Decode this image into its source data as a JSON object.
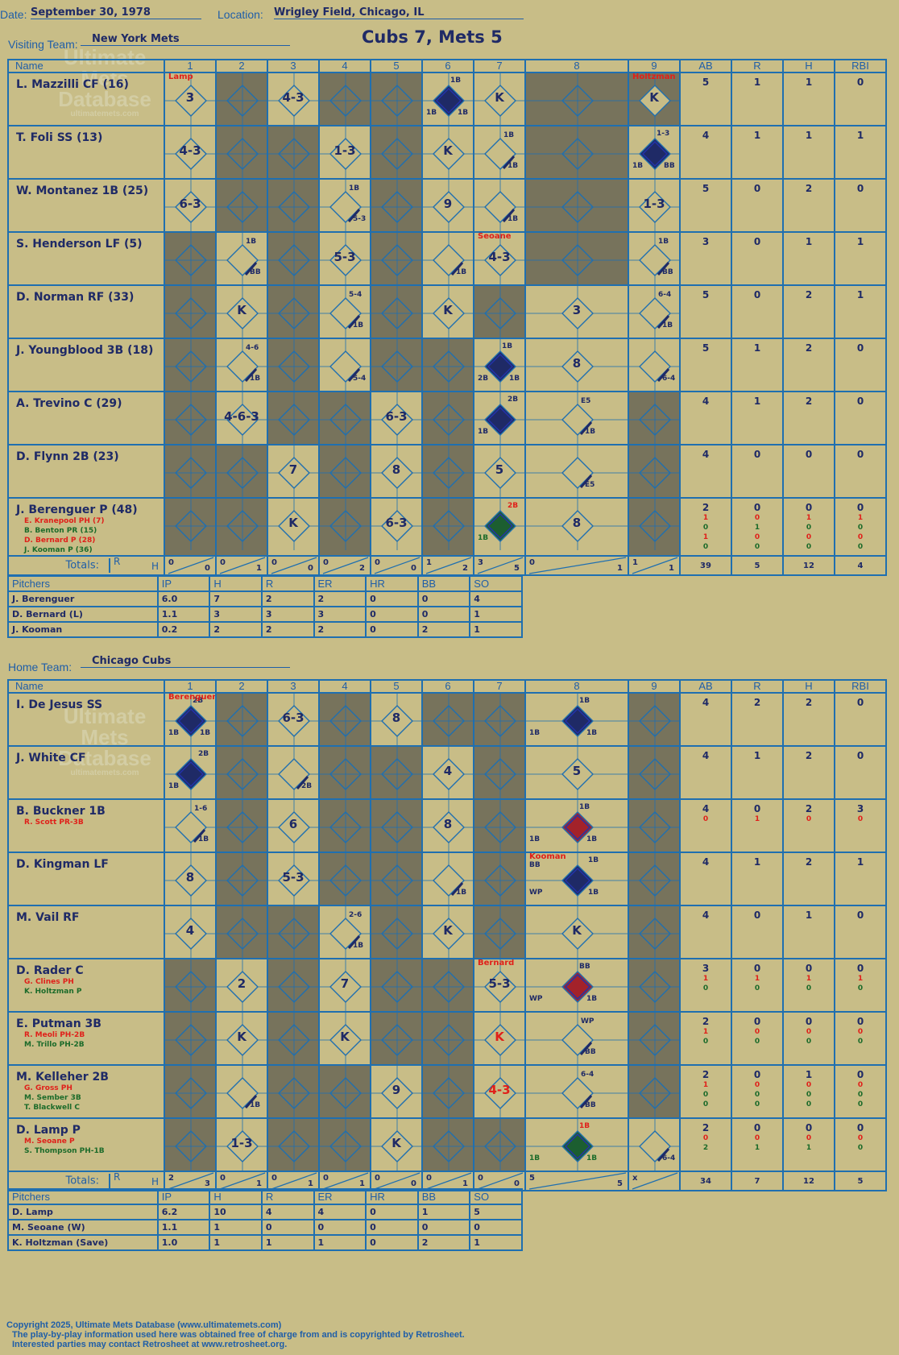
{
  "header": {
    "date_label": "Date:",
    "date": "September 30, 1978",
    "location_label": "Location:",
    "location": "Wrigley Field, Chicago, IL",
    "visiting_label": "Visiting Team:",
    "visiting_team": "New York Mets",
    "title": "Cubs 7, Mets 5",
    "home_label": "Home Team:",
    "home_team": "Chicago Cubs"
  },
  "watermark": {
    "line1": "Ultimate",
    "line2": "Mets",
    "line3": "Database",
    "url": "ultimatemets.com"
  },
  "columns": {
    "name": "Name",
    "innings": [
      "1",
      "2",
      "3",
      "4",
      "5",
      "6",
      "7",
      "8",
      "9"
    ],
    "stats": [
      "AB",
      "R",
      "H",
      "RBI"
    ]
  },
  "totals_label": "Totals:",
  "totals_r": "R",
  "totals_h": "H",
  "pitchers_header": [
    "Pitchers",
    "IP",
    "H",
    "R",
    "ER",
    "HR",
    "BB",
    "SO"
  ],
  "colors": {
    "background": "#c8bd87",
    "grid": "#1f6fb0",
    "ink": "#1f2a66",
    "red": "#e0201a",
    "green": "#1c6b2a",
    "gray_cell": "#77735c",
    "run_blue": "#1f2a66",
    "run_red": "#a3222a",
    "run_green": "#1c5e30"
  },
  "visitors": {
    "batters": [
      {
        "name": "L. Mazzilli CF (16)",
        "subs": [],
        "ab": "5",
        "r": "1",
        "h": "1",
        "rbi": "0"
      },
      {
        "name": "T. Foli SS (13)",
        "subs": [],
        "ab": "4",
        "r": "1",
        "h": "1",
        "rbi": "1"
      },
      {
        "name": "W. Montanez 1B (25)",
        "subs": [],
        "ab": "5",
        "r": "0",
        "h": "2",
        "rbi": "0"
      },
      {
        "name": "S. Henderson LF (5)",
        "subs": [],
        "ab": "3",
        "r": "0",
        "h": "1",
        "rbi": "1"
      },
      {
        "name": "D. Norman RF (33)",
        "subs": [],
        "ab": "5",
        "r": "0",
        "h": "2",
        "rbi": "1"
      },
      {
        "name": "J. Youngblood 3B (18)",
        "subs": [],
        "ab": "5",
        "r": "1",
        "h": "2",
        "rbi": "0"
      },
      {
        "name": "A. Trevino C (29)",
        "subs": [],
        "ab": "4",
        "r": "1",
        "h": "2",
        "rbi": "0"
      },
      {
        "name": "D. Flynn 2B (23)",
        "subs": [],
        "ab": "4",
        "r": "0",
        "h": "0",
        "rbi": "0"
      },
      {
        "name": "J. Berenguer P (48)",
        "subs": [
          {
            "name": "E. Kranepool PH (7)",
            "color": "#e0201a",
            "ab": "1",
            "r": "0",
            "h": "1",
            "rbi": "1"
          },
          {
            "name": "B. Benton PR (15)",
            "color": "#1c6b2a",
            "ab": "0",
            "r": "1",
            "h": "0",
            "rbi": "0"
          },
          {
            "name": "D. Bernard P (28)",
            "color": "#e0201a",
            "ab": "1",
            "r": "0",
            "h": "0",
            "rbi": "0"
          },
          {
            "name": "J. Kooman P (36)",
            "color": "#1c6b2a",
            "ab": "0",
            "r": "0",
            "h": "0",
            "rbi": "0"
          }
        ],
        "ab": "2",
        "r": "0",
        "h": "0",
        "rbi": "0"
      }
    ],
    "cells": [
      [
        "3|Lamp",
        "G",
        "4-3",
        "G",
        "G",
        "*blue|1B|1B|1B",
        "K",
        "G",
        "G|Holtzman*K"
      ],
      [
        "4-3",
        "G",
        "G",
        "1-3",
        "G",
        "K",
        "/1B|1B",
        "G",
        "*blue|1-3|1B|BB"
      ],
      [
        "6-3",
        "G",
        "G",
        "/1B|5-3|1B",
        "G",
        "9",
        "/1B",
        "G",
        "1-3"
      ],
      [
        "G",
        "/1B|BB",
        "G",
        "5-3",
        "G",
        "/1B",
        "4-3|Seoane",
        "G",
        "/1B|BB"
      ],
      [
        "G",
        "K",
        "G",
        "/5-4|1B",
        "G",
        "K",
        "G",
        "3",
        "/6-4|1B"
      ],
      [
        "G",
        "/4-6|1B",
        "G",
        "/5-4",
        "G",
        "G",
        "*blue|1B|2B|1B",
        "8",
        "/6-4"
      ],
      [
        "G",
        "4-6-3",
        "G",
        "G",
        "6-3",
        "G",
        "*blue|2B|1B",
        "/E5|1B",
        "G"
      ],
      [
        "G",
        "G",
        "7",
        "G",
        "8",
        "G",
        "5",
        "/E5",
        "G"
      ],
      [
        "G",
        "G",
        "K",
        "G",
        "6-3",
        "G",
        "*green|2B|1B",
        "8",
        "G"
      ]
    ],
    "totals": [
      [
        "0",
        "0"
      ],
      [
        "0",
        "1"
      ],
      [
        "0",
        "0"
      ],
      [
        "0",
        "2"
      ],
      [
        "0",
        "0"
      ],
      [
        "1",
        "2"
      ],
      [
        "3",
        "5"
      ],
      [
        "0",
        "1"
      ],
      [
        "1",
        "1"
      ]
    ],
    "totals_stats": {
      "ab": "39",
      "r": "5",
      "h": "12",
      "rbi": "4"
    },
    "pitchers": [
      [
        "J. Berenguer",
        "6.0",
        "7",
        "2",
        "2",
        "0",
        "0",
        "4"
      ],
      [
        "D. Bernard (L)",
        "1.1",
        "3",
        "3",
        "3",
        "0",
        "0",
        "1"
      ],
      [
        "J. Kooman",
        "0.2",
        "2",
        "2",
        "2",
        "0",
        "2",
        "1"
      ]
    ]
  },
  "home": {
    "batters": [
      {
        "name": "I. De Jesus SS",
        "subs": [],
        "ab": "4",
        "r": "2",
        "h": "2",
        "rbi": "0"
      },
      {
        "name": "J. White CF",
        "subs": [],
        "ab": "4",
        "r": "1",
        "h": "2",
        "rbi": "0"
      },
      {
        "name": "B. Buckner 1B",
        "subs": [
          {
            "name": "R. Scott PR-3B",
            "color": "#e0201a",
            "ab": "0",
            "r": "1",
            "h": "0",
            "rbi": "0"
          }
        ],
        "ab": "4",
        "r": "0",
        "h": "2",
        "rbi": "3"
      },
      {
        "name": "D. Kingman LF",
        "subs": [],
        "ab": "4",
        "r": "1",
        "h": "2",
        "rbi": "1"
      },
      {
        "name": "M. Vail RF",
        "subs": [],
        "ab": "4",
        "r": "0",
        "h": "1",
        "rbi": "0"
      },
      {
        "name": "D. Rader C",
        "subs": [
          {
            "name": "G. Clines PH",
            "color": "#e0201a",
            "ab": "1",
            "r": "1",
            "h": "1",
            "rbi": "1"
          },
          {
            "name": "K. Holtzman P",
            "color": "#1c6b2a",
            "ab": "0",
            "r": "0",
            "h": "0",
            "rbi": "0"
          }
        ],
        "ab": "3",
        "r": "0",
        "h": "0",
        "rbi": "0"
      },
      {
        "name": "E. Putman 3B",
        "subs": [
          {
            "name": "R. Meoli PH-2B",
            "color": "#e0201a",
            "ab": "1",
            "r": "0",
            "h": "0",
            "rbi": "0"
          },
          {
            "name": "M. Trillo PH-2B",
            "color": "#1c6b2a",
            "ab": "0",
            "r": "0",
            "h": "0",
            "rbi": "0"
          }
        ],
        "ab": "2",
        "r": "0",
        "h": "0",
        "rbi": "0"
      },
      {
        "name": "M. Kelleher 2B",
        "subs": [
          {
            "name": "G. Gross PH",
            "color": "#e0201a",
            "ab": "1",
            "r": "0",
            "h": "0",
            "rbi": "0"
          },
          {
            "name": "M. Sember 3B",
            "color": "#1c6b2a",
            "ab": "0",
            "r": "0",
            "h": "0",
            "rbi": "0"
          },
          {
            "name": "T. Blackwell C",
            "color": "#1c6b2a",
            "ab": "0",
            "r": "0",
            "h": "0",
            "rbi": "0"
          }
        ],
        "ab": "2",
        "r": "0",
        "h": "1",
        "rbi": "0"
      },
      {
        "name": "D. Lamp P",
        "subs": [
          {
            "name": "M. Seoane P",
            "color": "#e0201a",
            "ab": "0",
            "r": "0",
            "h": "0",
            "rbi": "0"
          },
          {
            "name": "S. Thompson PH-1B",
            "color": "#1c6b2a",
            "ab": "2",
            "r": "1",
            "h": "1",
            "rbi": "0"
          }
        ],
        "ab": "2",
        "r": "0",
        "h": "0",
        "rbi": "0"
      }
    ],
    "cells": [
      [
        "*blue|2B|1B|1B|Berenguer",
        "G",
        "6-3",
        "G",
        "8",
        "G",
        "G",
        "*blue|1B|1B|1B",
        "G"
      ],
      [
        "*blue|2B|1B",
        "G",
        "/2B",
        "G",
        "G",
        "4",
        "G",
        "5",
        "G"
      ],
      [
        "/1-6|1B",
        "G",
        "6",
        "G",
        "G",
        "8",
        "G",
        "*red|1B|1B|1B",
        "G"
      ],
      [
        "8",
        "G",
        "5-3",
        "G",
        "G",
        "/1B",
        "G",
        "*blue|BB|1B|WP|1B|Kooman",
        "G"
      ],
      [
        "4",
        "G",
        "G",
        "/2-6|1B",
        "G",
        "K",
        "G",
        "K",
        "G"
      ],
      [
        "G",
        "2",
        "G",
        "7",
        "G",
        "G",
        "5-3|Bernard",
        "*red|BB|WP|1B",
        "G"
      ],
      [
        "G",
        "K",
        "G",
        "K",
        "G",
        "G",
        "K",
        "/WP|BB",
        "G"
      ],
      [
        "G",
        "/1B",
        "G",
        "G",
        "9",
        "G",
        "4-3",
        "/6-4|BB",
        "G"
      ],
      [
        "G",
        "1-3",
        "G",
        "G",
        "K",
        "G",
        "G",
        "*green|1B|1B|1B",
        "/6-4"
      ]
    ],
    "totals": [
      [
        "2",
        "3"
      ],
      [
        "0",
        "1"
      ],
      [
        "0",
        "1"
      ],
      [
        "0",
        "1"
      ],
      [
        "0",
        "0"
      ],
      [
        "0",
        "1"
      ],
      [
        "0",
        "0"
      ],
      [
        "5",
        "5"
      ],
      [
        "x",
        ""
      ]
    ],
    "totals_stats": {
      "ab": "34",
      "r": "7",
      "h": "12",
      "rbi": "5"
    },
    "pitchers": [
      [
        "D. Lamp",
        "6.2",
        "10",
        "4",
        "4",
        "0",
        "1",
        "5"
      ],
      [
        "M. Seoane (W)",
        "1.1",
        "1",
        "0",
        "0",
        "0",
        "0",
        "0"
      ],
      [
        "K. Holtzman (Save)",
        "1.0",
        "1",
        "1",
        "1",
        "0",
        "2",
        "1"
      ]
    ]
  },
  "footer": {
    "line1": "Copyright 2025, Ultimate Mets Database (www.ultimatemets.com)",
    "line2": "The play-by-play information used here was obtained free of charge from and is copyrighted by Retrosheet.",
    "line3": "Interested parties may contact Retrosheet at www.retrosheet.org."
  }
}
